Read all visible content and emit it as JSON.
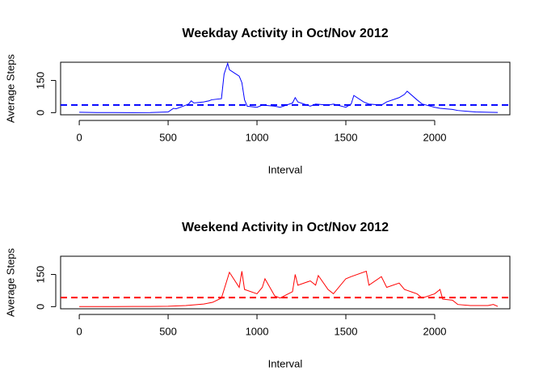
{
  "chart_data": [
    {
      "type": "line",
      "title": "Weekday Activity in Oct/Nov 2012",
      "xlabel": "Interval",
      "ylabel": "Average Steps",
      "xlim": [
        -105,
        2423
      ],
      "ylim": [
        -10,
        235
      ],
      "xticks": [
        0,
        500,
        1000,
        1500,
        2000
      ],
      "yticks": [
        0,
        150
      ],
      "mean_line": {
        "value": 35.6,
        "color": "#0000ff",
        "dashed": true
      },
      "x": [
        0,
        100,
        200,
        300,
        400,
        500,
        530,
        545,
        600,
        615,
        630,
        645,
        700,
        730,
        745,
        800,
        815,
        835,
        845,
        900,
        915,
        930,
        945,
        1000,
        1030,
        1100,
        1130,
        1200,
        1215,
        1230,
        1300,
        1330,
        1400,
        1430,
        1500,
        1530,
        1545,
        1600,
        1630,
        1700,
        1730,
        1800,
        1830,
        1845,
        1900,
        1930,
        2000,
        2030,
        2100,
        2130,
        2200,
        2230,
        2300,
        2355
      ],
      "series": [
        {
          "name": "Weekday",
          "color": "#0000ff",
          "values": [
            2,
            0.5,
            0.2,
            0.1,
            0.5,
            3,
            20,
            18,
            35,
            40,
            55,
            45,
            50,
            55,
            60,
            65,
            180,
            230,
            200,
            170,
            140,
            60,
            30,
            25,
            35,
            30,
            25,
            45,
            70,
            50,
            30,
            40,
            35,
            40,
            25,
            40,
            80,
            50,
            40,
            35,
            50,
            70,
            85,
            100,
            60,
            40,
            25,
            20,
            15,
            10,
            5,
            3,
            2,
            1
          ]
        }
      ]
    },
    {
      "type": "line",
      "title": "Weekend Activity in Oct/Nov 2012",
      "xlabel": "Interval",
      "ylabel": "Average Steps",
      "xlim": [
        -105,
        2423
      ],
      "ylim": [
        -10,
        235
      ],
      "xticks": [
        0,
        500,
        1000,
        1500,
        2000
      ],
      "yticks": [
        0,
        150
      ],
      "mean_line": {
        "value": 42.4,
        "color": "#ff0000",
        "dashed": true
      },
      "x": [
        0,
        100,
        200,
        300,
        400,
        500,
        600,
        700,
        750,
        800,
        830,
        845,
        900,
        915,
        930,
        1000,
        1030,
        1045,
        1100,
        1130,
        1200,
        1215,
        1230,
        1300,
        1330,
        1345,
        1400,
        1430,
        1500,
        1530,
        1615,
        1630,
        1700,
        1730,
        1800,
        1830,
        1900,
        1930,
        2000,
        2030,
        2045,
        2100,
        2130,
        2200,
        2300,
        2330,
        2355
      ],
      "series": [
        {
          "name": "Weekend",
          "color": "#ff0000",
          "values": [
            0.5,
            0.3,
            0.5,
            0.8,
            1,
            2,
            5,
            12,
            20,
            40,
            120,
            160,
            90,
            165,
            80,
            60,
            90,
            130,
            50,
            40,
            70,
            150,
            100,
            120,
            100,
            145,
            80,
            60,
            130,
            140,
            165,
            100,
            140,
            90,
            110,
            80,
            60,
            40,
            60,
            80,
            35,
            30,
            10,
            5,
            5,
            10,
            1
          ]
        }
      ]
    }
  ]
}
